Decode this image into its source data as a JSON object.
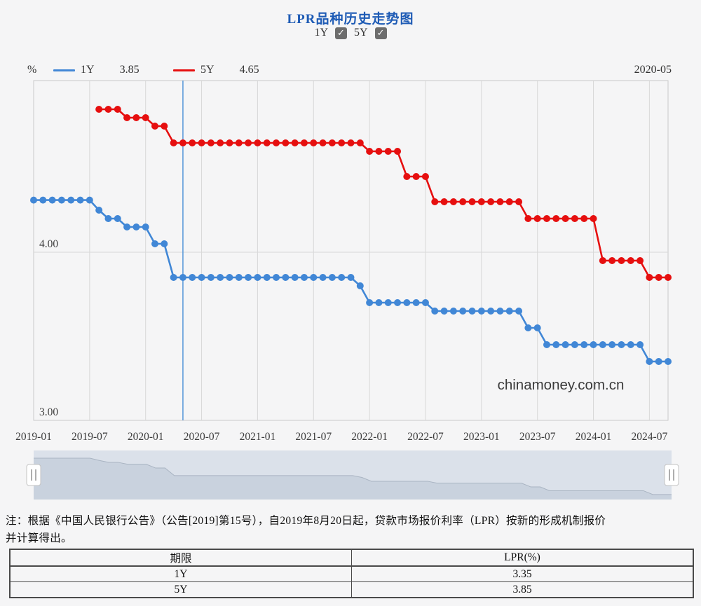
{
  "title": "LPR品种历史走势图",
  "controls": {
    "series_1y_label": "1Y",
    "series_5y_label": "5Y",
    "check_glyph": "✓",
    "checked_1y": true,
    "checked_5y": true
  },
  "tooltip": {
    "date": "2020-05",
    "legend": [
      {
        "name": "1Y",
        "value": "3.85"
      },
      {
        "name": "5Y",
        "value": "4.65"
      }
    ]
  },
  "colors": {
    "title": "#1e5bb5",
    "series_1y": "#4187d6",
    "series_5y": "#e60f0f",
    "hover_line": "#5596d8",
    "grid": "#d8d8d8",
    "plot_border": "#c9c9c9",
    "axis_text": "#3d3d3d",
    "watermark_text": "#3b3b3b",
    "nav_band": "#dbe1ea",
    "nav_area": "#c9d2de",
    "nav_line": "#a9b4c2"
  },
  "chart_data": {
    "type": "line",
    "title": "LPR品种历史走势图",
    "ylabel_unit": "%",
    "ylim": [
      3.0,
      5.02
    ],
    "y_ticks": [
      {
        "label": "4.00",
        "value": 4.0
      },
      {
        "label": "3.00",
        "value": 3.0
      }
    ],
    "x_start": "2019-01",
    "x_end": "2024-09",
    "n_months": 69,
    "x_tick_step": 6,
    "x_tick_labels": [
      "2019-01",
      "2019-07",
      "2020-01",
      "2020-07",
      "2021-01",
      "2021-07",
      "2022-01",
      "2022-07",
      "2023-01",
      "2023-07",
      "2024-01",
      "2024-07"
    ],
    "hover": {
      "date": "2020-05",
      "index": 16
    },
    "watermark": "chinamoney.com.cn",
    "series": [
      {
        "name": "1Y",
        "values": [
          4.31,
          4.31,
          4.31,
          4.31,
          4.31,
          4.31,
          4.31,
          4.25,
          4.2,
          4.2,
          4.15,
          4.15,
          4.15,
          4.05,
          4.05,
          3.85,
          3.85,
          3.85,
          3.85,
          3.85,
          3.85,
          3.85,
          3.85,
          3.85,
          3.85,
          3.85,
          3.85,
          3.85,
          3.85,
          3.85,
          3.85,
          3.85,
          3.85,
          3.85,
          3.85,
          3.8,
          3.7,
          3.7,
          3.7,
          3.7,
          3.7,
          3.7,
          3.7,
          3.65,
          3.65,
          3.65,
          3.65,
          3.65,
          3.65,
          3.65,
          3.65,
          3.65,
          3.65,
          3.55,
          3.55,
          3.45,
          3.45,
          3.45,
          3.45,
          3.45,
          3.45,
          3.45,
          3.45,
          3.45,
          3.45,
          3.45,
          3.35,
          3.35,
          3.35
        ]
      },
      {
        "name": "5Y",
        "values": [
          null,
          null,
          null,
          null,
          null,
          null,
          null,
          4.85,
          4.85,
          4.85,
          4.8,
          4.8,
          4.8,
          4.75,
          4.75,
          4.65,
          4.65,
          4.65,
          4.65,
          4.65,
          4.65,
          4.65,
          4.65,
          4.65,
          4.65,
          4.65,
          4.65,
          4.65,
          4.65,
          4.65,
          4.65,
          4.65,
          4.65,
          4.65,
          4.65,
          4.65,
          4.6,
          4.6,
          4.6,
          4.6,
          4.45,
          4.45,
          4.45,
          4.3,
          4.3,
          4.3,
          4.3,
          4.3,
          4.3,
          4.3,
          4.3,
          4.3,
          4.3,
          4.2,
          4.2,
          4.2,
          4.2,
          4.2,
          4.2,
          4.2,
          4.2,
          3.95,
          3.95,
          3.95,
          3.95,
          3.95,
          3.85,
          3.85,
          3.85
        ]
      }
    ]
  },
  "note": {
    "line1": "注：根据《中国人民银行公告》（公告[2019]第15号），自2019年8月20日起，贷款市场报价利率（LPR）按新的形成机制报价",
    "line2": "并计算得出。"
  },
  "table": {
    "headers": [
      "期限",
      "LPR(%)"
    ],
    "rows": [
      [
        "1Y",
        "3.35"
      ],
      [
        "5Y",
        "3.85"
      ]
    ]
  }
}
